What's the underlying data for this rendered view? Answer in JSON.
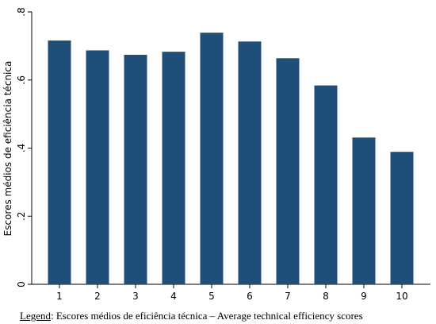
{
  "chart_data": {
    "type": "bar",
    "categories": [
      "1",
      "2",
      "3",
      "4",
      "5",
      "6",
      "7",
      "8",
      "9",
      "10"
    ],
    "values": [
      0.716,
      0.687,
      0.674,
      0.683,
      0.739,
      0.713,
      0.664,
      0.584,
      0.431,
      0.389
    ],
    "ylabel": "Escores médios de eficiência técnica",
    "xlabel": "",
    "ylim": [
      0,
      0.8
    ],
    "yticks": [
      0,
      0.2,
      0.4,
      0.6,
      0.8
    ],
    "ytick_labels": [
      "0",
      ".2",
      ".4",
      ".6",
      ".8"
    ],
    "bar_color": "#1f4e79",
    "grid": false
  },
  "legend": {
    "label": "Legend",
    "text": ": Escores médios de eficiência técnica – Average technical efficiency scores"
  }
}
